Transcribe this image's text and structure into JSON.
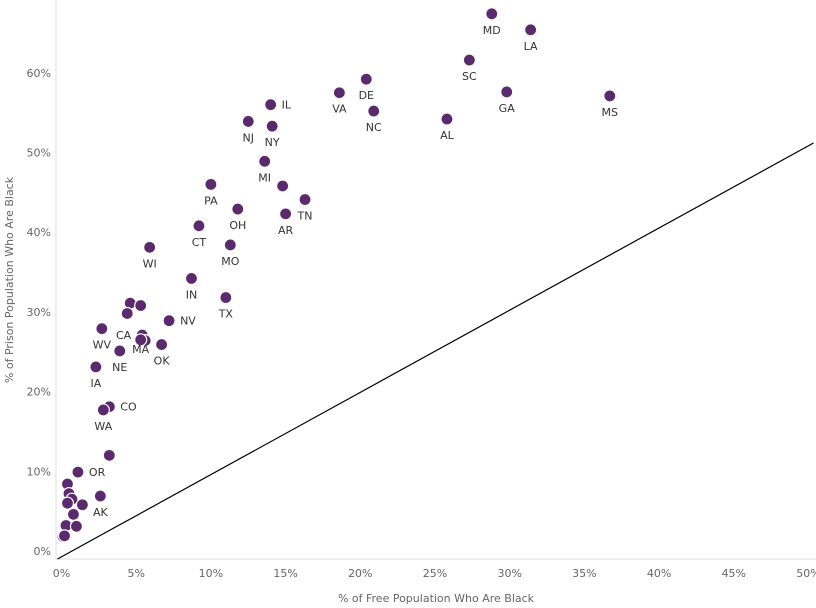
{
  "chart_data": {
    "type": "scatter",
    "title": "",
    "xlabel": "% of Free Population Who Are Black",
    "ylabel": "% of Prison Population Who Are Black",
    "xlim": [
      0,
      50
    ],
    "ylim": [
      0,
      68
    ],
    "grid": false,
    "colors": {
      "point": "#5B2A6E",
      "point_stroke": "#ffffff",
      "line": "#000000",
      "axis": "#dddddd"
    },
    "x_ticks": [
      0,
      5,
      10,
      15,
      20,
      25,
      30,
      35,
      40,
      45,
      50
    ],
    "y_ticks": [
      0,
      10,
      20,
      30,
      40,
      50,
      60
    ],
    "x_tick_labels": [
      "0%",
      "5%",
      "10%",
      "15%",
      "20%",
      "25%",
      "30%",
      "35%",
      "40%",
      "45%",
      "50%"
    ],
    "y_tick_labels": [
      "0%",
      "10%",
      "20%",
      "30%",
      "40%",
      "50%",
      "60%"
    ],
    "reference_line": {
      "x1": 0,
      "y1": 0,
      "x2": 50,
      "y2": 50
    },
    "points": [
      {
        "label": "MD",
        "x": 28.8,
        "y": 67.4,
        "pos": "below"
      },
      {
        "label": "LA",
        "x": 31.4,
        "y": 65.4,
        "pos": "below"
      },
      {
        "label": "SC",
        "x": 27.3,
        "y": 61.6,
        "pos": "below"
      },
      {
        "label": "DE",
        "x": 20.4,
        "y": 59.2,
        "pos": "below"
      },
      {
        "label": "GA",
        "x": 29.8,
        "y": 57.6,
        "pos": "below"
      },
      {
        "label": "VA",
        "x": 18.6,
        "y": 57.5,
        "pos": "below"
      },
      {
        "label": "MS",
        "x": 36.7,
        "y": 57.1,
        "pos": "below"
      },
      {
        "label": "IL",
        "x": 14.0,
        "y": 56.0,
        "pos": "right"
      },
      {
        "label": "NC",
        "x": 20.9,
        "y": 55.2,
        "pos": "below"
      },
      {
        "label": "AL",
        "x": 25.8,
        "y": 54.2,
        "pos": "below"
      },
      {
        "label": "NJ",
        "x": 12.5,
        "y": 53.9,
        "pos": "below"
      },
      {
        "label": "NY",
        "x": 14.1,
        "y": 53.3,
        "pos": "below"
      },
      {
        "label": "MI",
        "x": 13.6,
        "y": 48.9,
        "pos": "below"
      },
      {
        "label": "PA",
        "x": 10.0,
        "y": 46.0,
        "pos": "below"
      },
      {
        "label": "",
        "x": 14.8,
        "y": 45.8,
        "pos": "none"
      },
      {
        "label": "TN",
        "x": 16.3,
        "y": 44.1,
        "pos": "below-right"
      },
      {
        "label": "OH",
        "x": 11.8,
        "y": 42.9,
        "pos": "below"
      },
      {
        "label": "AR",
        "x": 15.0,
        "y": 42.3,
        "pos": "below"
      },
      {
        "label": "CT",
        "x": 9.2,
        "y": 40.8,
        "pos": "below"
      },
      {
        "label": "MO",
        "x": 11.3,
        "y": 38.4,
        "pos": "below"
      },
      {
        "label": "WI",
        "x": 5.9,
        "y": 38.1,
        "pos": "below"
      },
      {
        "label": "IN",
        "x": 8.7,
        "y": 34.2,
        "pos": "below"
      },
      {
        "label": "TX",
        "x": 11.0,
        "y": 31.8,
        "pos": "below"
      },
      {
        "label": "",
        "x": 4.6,
        "y": 31.1,
        "pos": "none"
      },
      {
        "label": "",
        "x": 5.3,
        "y": 30.8,
        "pos": "none"
      },
      {
        "label": "",
        "x": 4.4,
        "y": 29.8,
        "pos": "none"
      },
      {
        "label": "NV",
        "x": 7.2,
        "y": 28.9,
        "pos": "right"
      },
      {
        "label": "WV",
        "x": 2.7,
        "y": 27.9,
        "pos": "below"
      },
      {
        "label": "CA",
        "x": 5.4,
        "y": 27.1,
        "pos": "left"
      },
      {
        "label": "",
        "x": 5.6,
        "y": 26.4,
        "pos": "none"
      },
      {
        "label": "OK",
        "x": 6.7,
        "y": 25.9,
        "pos": "below"
      },
      {
        "label": "MA",
        "x": 5.3,
        "y": 26.5,
        "pos": "below-low"
      },
      {
        "label": "NE",
        "x": 3.9,
        "y": 25.1,
        "pos": "below"
      },
      {
        "label": "IA",
        "x": 2.3,
        "y": 23.1,
        "pos": "below"
      },
      {
        "label": "CO",
        "x": 3.2,
        "y": 18.1,
        "pos": "right"
      },
      {
        "label": "WA",
        "x": 2.8,
        "y": 17.7,
        "pos": "below"
      },
      {
        "label": "",
        "x": 3.2,
        "y": 12.0,
        "pos": "none"
      },
      {
        "label": "OR",
        "x": 1.1,
        "y": 9.9,
        "pos": "right"
      },
      {
        "label": "",
        "x": 0.4,
        "y": 8.4,
        "pos": "none"
      },
      {
        "label": "",
        "x": 0.5,
        "y": 7.2,
        "pos": "none"
      },
      {
        "label": "",
        "x": 0.7,
        "y": 6.5,
        "pos": "none"
      },
      {
        "label": "",
        "x": 0.4,
        "y": 6.0,
        "pos": "none"
      },
      {
        "label": "",
        "x": 1.4,
        "y": 5.8,
        "pos": "none"
      },
      {
        "label": "AK",
        "x": 2.6,
        "y": 6.9,
        "pos": "below"
      },
      {
        "label": "",
        "x": 0.8,
        "y": 4.6,
        "pos": "none"
      },
      {
        "label": "",
        "x": 0.3,
        "y": 3.2,
        "pos": "none"
      },
      {
        "label": "",
        "x": 1.0,
        "y": 3.1,
        "pos": "none"
      },
      {
        "label": "",
        "x": 0.1,
        "y": 1.8,
        "pos": "none"
      },
      {
        "label": "",
        "x": 0.2,
        "y": 1.9,
        "pos": "none"
      }
    ]
  }
}
